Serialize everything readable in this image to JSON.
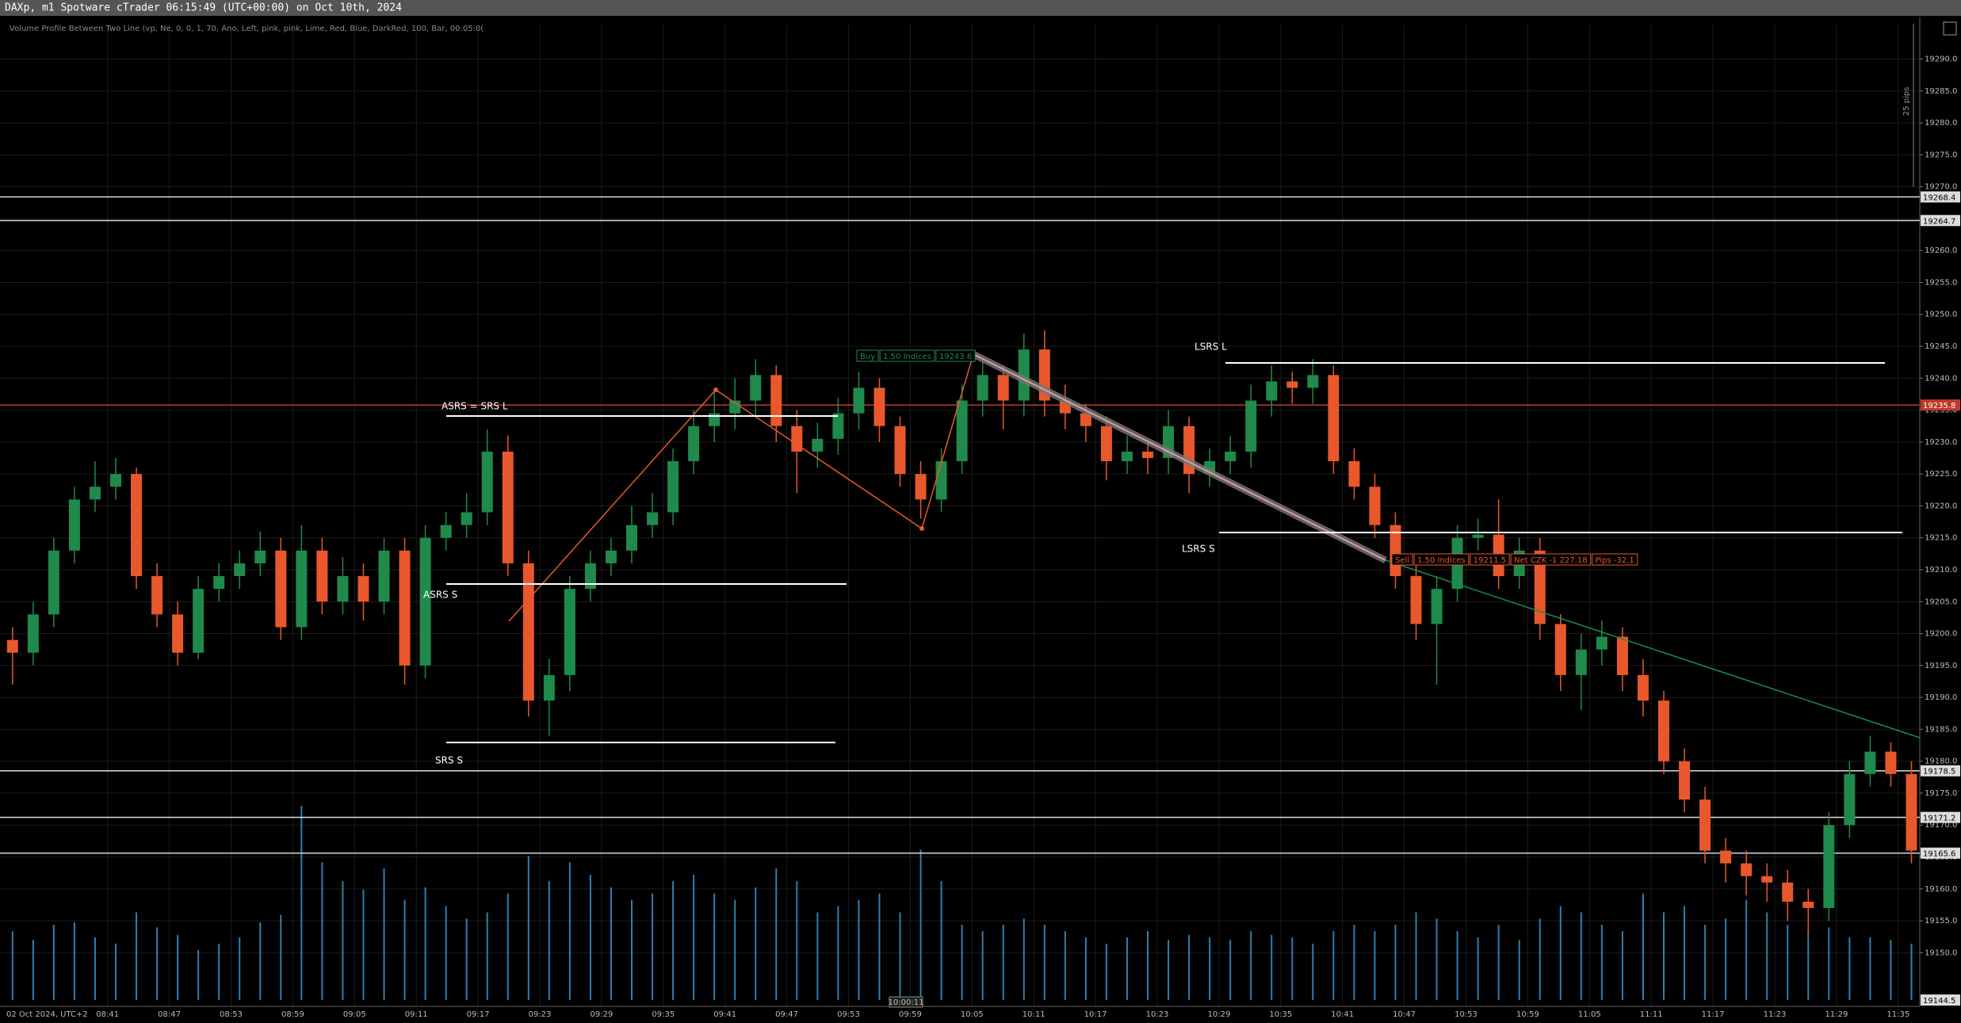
{
  "window": {
    "title": "DAXp, m1 Spotware cTrader 06:15:49 (UTC+00:00) on Oct 10th, 2024"
  },
  "chart_data": {
    "type": "candlestick",
    "indicator": "Volume Profile Between Two Line (vp, Ne, 0, 0, 1, 70, Ano, Left, pink, pink, Lime, Red, Blue, DarkRed, 100, Bar, 00:05:0(",
    "scale_label": "25 pips",
    "date_label": "02 Oct 2024, UTC+2",
    "cursor_time": "10:00:11",
    "bull_color": "#1f8a4c",
    "bear_color": "#e8582c",
    "volume_color": "#2f7fb0",
    "grid": true,
    "ylim": [
      19141.6,
      19295.4
    ],
    "yticks": [
      {
        "value": 19150,
        "label": "19150.0"
      },
      {
        "value": 19155,
        "label": "19155.0"
      },
      {
        "value": 19160,
        "label": "19160.0"
      },
      {
        "value": 19165,
        "label": "19165.0"
      },
      {
        "value": 19170,
        "label": "19170.0"
      },
      {
        "value": 19175,
        "label": "19175.0"
      },
      {
        "value": 19180,
        "label": "19180.0"
      },
      {
        "value": 19185,
        "label": "19185.0"
      },
      {
        "value": 19190,
        "label": "19190.0"
      },
      {
        "value": 19195,
        "label": "19195.0"
      },
      {
        "value": 19200,
        "label": "19200.0"
      },
      {
        "value": 19205,
        "label": "19205.0"
      },
      {
        "value": 19210,
        "label": "19210.0"
      },
      {
        "value": 19215,
        "label": "19215.0"
      },
      {
        "value": 19220,
        "label": "19220.0"
      },
      {
        "value": 19225,
        "label": "19225.0"
      },
      {
        "value": 19230,
        "label": "19230.0"
      },
      {
        "value": 19235,
        "label": "19235.0"
      },
      {
        "value": 19240,
        "label": "19240.0"
      },
      {
        "value": 19245,
        "label": "19245.0"
      },
      {
        "value": 19250,
        "label": "19250.0"
      },
      {
        "value": 19255,
        "label": "19255.0"
      },
      {
        "value": 19260,
        "label": "19260.0"
      },
      {
        "value": 19265,
        "label": "19265.0"
      },
      {
        "value": 19270,
        "label": "19270.0"
      },
      {
        "value": 19275,
        "label": "19275.0"
      },
      {
        "value": 19280,
        "label": "19280.0"
      },
      {
        "value": 19285,
        "label": "19285.0"
      },
      {
        "value": 19290,
        "label": "19290.0"
      }
    ],
    "time_labels": [
      "08:41",
      "08:47",
      "08:53",
      "08:59",
      "09:05",
      "09:11",
      "09:17",
      "09:23",
      "09:29",
      "09:35",
      "09:41",
      "09:47",
      "09:53",
      "09:59",
      "10:05",
      "10:11",
      "10:17",
      "10:23",
      "10:29",
      "10:35",
      "10:41",
      "10:47",
      "10:53",
      "10:59",
      "11:05",
      "11:11",
      "11:17",
      "11:23",
      "11:29",
      "11:35"
    ],
    "levels": [
      {
        "value": 19268.4,
        "color": "#dddddd"
      },
      {
        "value": 19264.7,
        "color": "#dddddd"
      },
      {
        "value": 19235.8,
        "color": "#c0392b"
      },
      {
        "value": 19178.5,
        "color": "#dddddd"
      },
      {
        "value": 19171.2,
        "color": "#dddddd"
      },
      {
        "value": 19165.6,
        "color": "#dddddd"
      }
    ],
    "bottom_label": 19144.5,
    "annotations": [
      "ASRS = SRS L",
      "ASRS S",
      "SRS S",
      "LSRS L",
      "LSRS S"
    ],
    "trades": [
      {
        "parts": [
          "Buy",
          "1.50 Indices",
          "19243.6"
        ],
        "color": "#1f8a4c"
      },
      {
        "parts": [
          "Sell",
          "1.50 Indices",
          "19211.5",
          "Net CZK -1 227.18",
          "Pips -32.1"
        ],
        "color": "#e8582c"
      }
    ],
    "candles": [
      [
        19199,
        19201,
        19192,
        19197
      ],
      [
        19197,
        19205,
        19195,
        19203
      ],
      [
        19203,
        19215,
        19201,
        19213
      ],
      [
        19213,
        19223,
        19211,
        19221
      ],
      [
        19221,
        19227,
        19219,
        19223
      ],
      [
        19223,
        19227.5,
        19221,
        19225
      ],
      [
        19225,
        19226,
        19207,
        19209
      ],
      [
        19209,
        19211,
        19201,
        19203
      ],
      [
        19203,
        19205,
        19195,
        19197
      ],
      [
        19197,
        19209,
        19196,
        19207
      ],
      [
        19207,
        19211,
        19205,
        19209
      ],
      [
        19209,
        19213,
        19207,
        19211
      ],
      [
        19211,
        19216,
        19209,
        19213
      ],
      [
        19213,
        19215,
        19199,
        19201
      ],
      [
        19201,
        19217,
        19199,
        19213
      ],
      [
        19213,
        19215,
        19203,
        19205
      ],
      [
        19205,
        19212,
        19203,
        19209
      ],
      [
        19209,
        19211,
        19202,
        19205
      ],
      [
        19205,
        19215,
        19203,
        19213
      ],
      [
        19213,
        19215,
        19192,
        19195
      ],
      [
        19195,
        19217,
        19193,
        19215
      ],
      [
        19215,
        19219,
        19213,
        19217
      ],
      [
        19217,
        19222,
        19215,
        19219
      ],
      [
        19219,
        19232,
        19217,
        19228.5
      ],
      [
        19228.5,
        19231,
        19209,
        19211
      ],
      [
        19211,
        19213,
        19187,
        19189.5
      ],
      [
        19189.5,
        19196,
        19184,
        19193.5
      ],
      [
        19193.5,
        19209,
        19191,
        19207
      ],
      [
        19207,
        19213,
        19205,
        19211
      ],
      [
        19211,
        19215,
        19209,
        19213
      ],
      [
        19213,
        19220,
        19211,
        19217
      ],
      [
        19217,
        19222,
        19215,
        19219
      ],
      [
        19219,
        19229,
        19217,
        19227
      ],
      [
        19227,
        19235,
        19225,
        19232.5
      ],
      [
        19232.5,
        19238,
        19230,
        19234.5
      ],
      [
        19234.5,
        19240,
        19232,
        19236.5
      ],
      [
        19236.5,
        19243,
        19234,
        19240.5
      ],
      [
        19240.5,
        19242,
        19230,
        19232.5
      ],
      [
        19232.5,
        19235,
        19222,
        19228.5
      ],
      [
        19228.5,
        19233,
        19226,
        19230.5
      ],
      [
        19230.5,
        19237,
        19228,
        19234.5
      ],
      [
        19234.5,
        19241,
        19232,
        19238.5
      ],
      [
        19238.5,
        19240,
        19230,
        19232.5
      ],
      [
        19232.5,
        19234,
        19223,
        19225
      ],
      [
        19225,
        19227,
        19218,
        19221
      ],
      [
        19221,
        19229,
        19219,
        19227
      ],
      [
        19227,
        19239,
        19225,
        19236.5
      ],
      [
        19236.5,
        19243,
        19234,
        19240.5
      ],
      [
        19240.5,
        19242,
        19232,
        19236.5
      ],
      [
        19236.5,
        19247,
        19234,
        19244.5
      ],
      [
        19244.5,
        19247.5,
        19234,
        19236.5
      ],
      [
        19236.5,
        19239,
        19232,
        19234.5
      ],
      [
        19234.5,
        19236,
        19230,
        19232.5
      ],
      [
        19232.5,
        19234,
        19224,
        19227
      ],
      [
        19227,
        19231,
        19225,
        19228.5
      ],
      [
        19228.5,
        19230,
        19225,
        19227.5
      ],
      [
        19227.5,
        19235,
        19225,
        19232.5
      ],
      [
        19232.5,
        19234,
        19222,
        19225
      ],
      [
        19225,
        19229,
        19223,
        19227
      ],
      [
        19227,
        19231,
        19225,
        19228.5
      ],
      [
        19228.5,
        19239,
        19226,
        19236.5
      ],
      [
        19236.5,
        19242,
        19234,
        19239.5
      ],
      [
        19239.5,
        19241,
        19236,
        19238.5
      ],
      [
        19238.5,
        19243,
        19236,
        19240.5
      ],
      [
        19240.5,
        19242,
        19225,
        19227
      ],
      [
        19227,
        19229,
        19221,
        19223
      ],
      [
        19223,
        19225,
        19215,
        19217
      ],
      [
        19217,
        19219,
        19207,
        19209
      ],
      [
        19209,
        19211,
        19199,
        19201.5
      ],
      [
        19201.5,
        19209,
        19192,
        19207
      ],
      [
        19207,
        19217,
        19205,
        19215
      ],
      [
        19215,
        19218,
        19213,
        19215.5
      ],
      [
        19215.5,
        19221,
        19207,
        19209
      ],
      [
        19209,
        19215,
        19207,
        19213
      ],
      [
        19213,
        19215,
        19199,
        19201.5
      ],
      [
        19201.5,
        19203,
        19191,
        19193.5
      ],
      [
        19193.5,
        19200,
        19188,
        19197.5
      ],
      [
        19197.5,
        19202,
        19195,
        19199.5
      ],
      [
        19199.5,
        19201,
        19191,
        19193.5
      ],
      [
        19193.5,
        19196,
        19187,
        19189.5
      ],
      [
        19189.5,
        19191,
        19178,
        19180
      ],
      [
        19180,
        19182,
        19172,
        19174
      ],
      [
        19174,
        19176,
        19164,
        19166
      ],
      [
        19166,
        19168,
        19161,
        19164
      ],
      [
        19164,
        19166,
        19159,
        19162
      ],
      [
        19162,
        19164,
        19158,
        19161
      ],
      [
        19161,
        19163,
        19155,
        19158
      ],
      [
        19158,
        19160,
        19153,
        19157
      ],
      [
        19157,
        19172,
        19155,
        19170
      ],
      [
        19170,
        19180,
        19168,
        19178
      ],
      [
        19178,
        19184,
        19176,
        19181.5
      ],
      [
        19181.5,
        19183,
        19176,
        19178
      ],
      [
        19178,
        19180,
        19164,
        19166
      ]
    ],
    "volume": [
      55,
      48,
      60,
      62,
      50,
      45,
      70,
      58,
      52,
      40,
      45,
      50,
      62,
      68,
      155,
      110,
      95,
      88,
      105,
      80,
      90,
      75,
      65,
      70,
      85,
      115,
      95,
      110,
      100,
      90,
      80,
      85,
      95,
      100,
      85,
      80,
      90,
      105,
      95,
      70,
      75,
      80,
      85,
      70,
      120,
      95,
      60,
      55,
      60,
      65,
      60,
      55,
      50,
      45,
      50,
      55,
      48,
      52,
      50,
      48,
      55,
      52,
      50,
      45,
      55,
      60,
      55,
      60,
      70,
      65,
      55,
      50,
      60,
      48,
      65,
      75,
      70,
      60,
      55,
      85,
      70,
      75,
      60,
      65,
      80,
      70,
      60,
      55,
      58,
      50,
      50,
      48,
      45
    ]
  }
}
